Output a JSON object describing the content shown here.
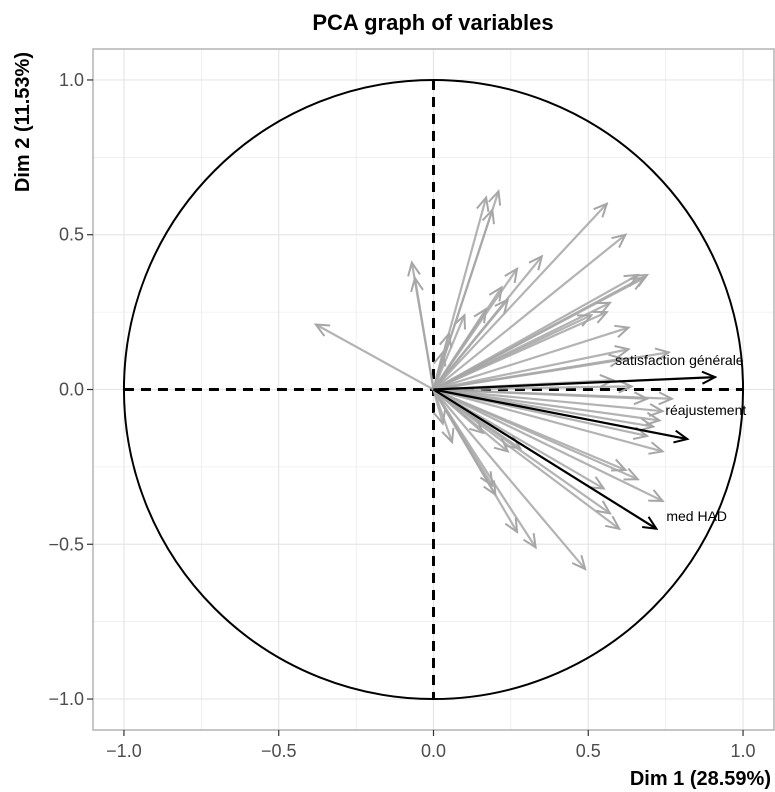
{
  "chart_data": {
    "type": "scatter",
    "title": "PCA graph of variables",
    "xlabel": "Dim 1 (28.59%)",
    "ylabel": "Dim 2 (11.53%)",
    "xlim": [
      -1.1,
      1.1
    ],
    "ylim": [
      -1.1,
      1.1
    ],
    "x_ticks": [
      -1.0,
      -0.5,
      0.0,
      0.5,
      1.0
    ],
    "y_ticks": [
      -1.0,
      -0.5,
      0.0,
      0.5,
      1.0
    ],
    "x_tick_labels": [
      "−1.0",
      "−0.5",
      "0.0",
      "0.5",
      "1.0"
    ],
    "y_tick_labels": [
      "−1.0",
      "−0.5",
      "0.0",
      "0.5",
      "1.0"
    ],
    "grid": true,
    "correlation_circle": true,
    "colors": {
      "highlight": "#000000",
      "other": "#a6a6a6",
      "circle": "#000000",
      "grid": "#e6e6e6",
      "panel_border": "#b3b3b3"
    },
    "highlighted_vectors": [
      {
        "label": "satisfaction générale",
        "x": 0.91,
        "y": 0.04
      },
      {
        "label": "réajustement",
        "x": 0.82,
        "y": -0.16
      },
      {
        "label": "med HAD",
        "x": 0.72,
        "y": -0.45
      }
    ],
    "vectors": [
      {
        "x": -0.38,
        "y": 0.21
      },
      {
        "x": -0.07,
        "y": 0.41
      },
      {
        "x": -0.06,
        "y": 0.36
      },
      {
        "x": 0.17,
        "y": 0.62
      },
      {
        "x": 0.21,
        "y": 0.64
      },
      {
        "x": 0.19,
        "y": 0.58
      },
      {
        "x": 0.56,
        "y": 0.6
      },
      {
        "x": 0.62,
        "y": 0.5
      },
      {
        "x": 0.35,
        "y": 0.43
      },
      {
        "x": 0.27,
        "y": 0.39
      },
      {
        "x": 0.22,
        "y": 0.33
      },
      {
        "x": 0.24,
        "y": 0.29
      },
      {
        "x": 0.17,
        "y": 0.26
      },
      {
        "x": 0.1,
        "y": 0.24
      },
      {
        "x": 0.05,
        "y": 0.18
      },
      {
        "x": 0.03,
        "y": 0.12
      },
      {
        "x": 0.69,
        "y": 0.37
      },
      {
        "x": 0.68,
        "y": 0.36
      },
      {
        "x": 0.66,
        "y": 0.37
      },
      {
        "x": 0.57,
        "y": 0.28
      },
      {
        "x": 0.56,
        "y": 0.25
      },
      {
        "x": 0.51,
        "y": 0.24
      },
      {
        "x": 0.63,
        "y": 0.2
      },
      {
        "x": 0.63,
        "y": 0.13
      },
      {
        "x": 0.61,
        "y": 0.1
      },
      {
        "x": 0.76,
        "y": 0.12
      },
      {
        "x": 0.58,
        "y": 0.03
      },
      {
        "x": 0.64,
        "y": 0.01
      },
      {
        "x": 0.69,
        "y": -0.03
      },
      {
        "x": 0.77,
        "y": -0.03
      },
      {
        "x": 0.74,
        "y": -0.07
      },
      {
        "x": 0.73,
        "y": -0.1
      },
      {
        "x": 0.71,
        "y": -0.12
      },
      {
        "x": 0.69,
        "y": -0.15
      },
      {
        "x": 0.74,
        "y": -0.2
      },
      {
        "x": 0.62,
        "y": -0.26
      },
      {
        "x": 0.66,
        "y": -0.29
      },
      {
        "x": 0.55,
        "y": -0.32
      },
      {
        "x": 0.74,
        "y": -0.36
      },
      {
        "x": 0.57,
        "y": -0.4
      },
      {
        "x": 0.6,
        "y": -0.45
      },
      {
        "x": 0.33,
        "y": -0.51
      },
      {
        "x": 0.27,
        "y": -0.46
      },
      {
        "x": 0.2,
        "y": -0.34
      },
      {
        "x": 0.19,
        "y": -0.31
      },
      {
        "x": 0.49,
        "y": -0.58
      },
      {
        "x": 0.28,
        "y": -0.19
      },
      {
        "x": 0.24,
        "y": -0.2
      },
      {
        "x": 0.06,
        "y": -0.17
      },
      {
        "x": 0.03,
        "y": -0.11
      },
      {
        "x": 0.16,
        "y": -0.14
      }
    ]
  }
}
